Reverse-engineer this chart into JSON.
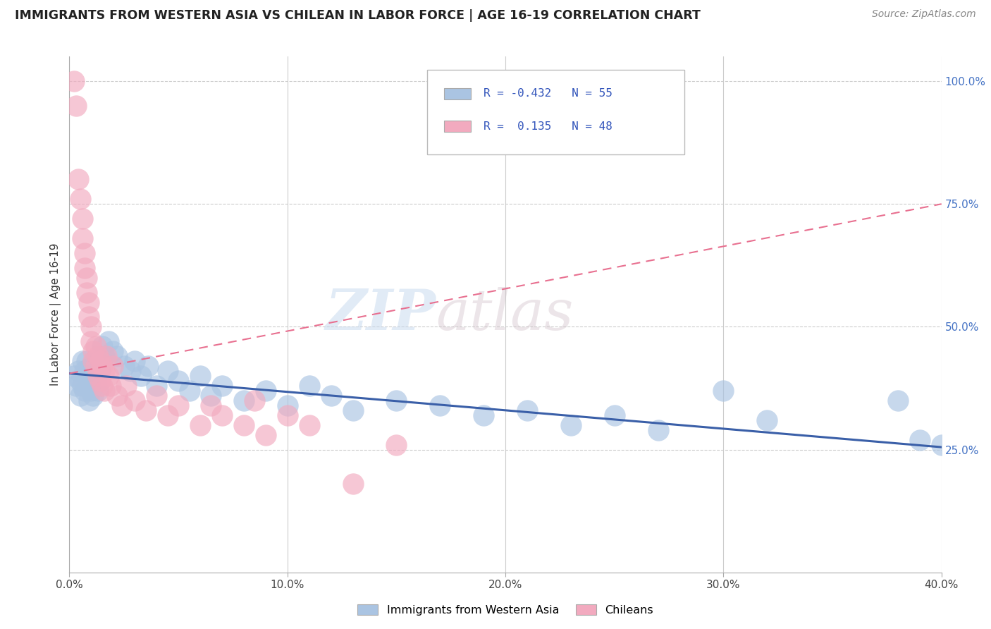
{
  "title": "IMMIGRANTS FROM WESTERN ASIA VS CHILEAN IN LABOR FORCE | AGE 16-19 CORRELATION CHART",
  "source": "Source: ZipAtlas.com",
  "ylabel": "In Labor Force | Age 16-19",
  "xmin": 0.0,
  "xmax": 0.4,
  "ymin": 0.0,
  "ymax": 1.05,
  "x_tick_labels": [
    "0.0%",
    "10.0%",
    "20.0%",
    "30.0%",
    "40.0%"
  ],
  "x_tick_values": [
    0.0,
    0.1,
    0.2,
    0.3,
    0.4
  ],
  "y_tick_labels_right": [
    "100.0%",
    "75.0%",
    "50.0%",
    "25.0%"
  ],
  "y_tick_values_right": [
    1.0,
    0.75,
    0.5,
    0.25
  ],
  "watermark_zip": "ZIP",
  "watermark_atlas": "atlas",
  "legend_blue_label": "Immigrants from Western Asia",
  "legend_pink_label": "Chileans",
  "blue_R": "-0.432",
  "blue_N": "55",
  "pink_R": "0.135",
  "pink_N": "48",
  "blue_color": "#aac4e2",
  "pink_color": "#f2aabf",
  "blue_line_color": "#3a5fa8",
  "pink_line_color": "#e87090",
  "blue_scatter": [
    [
      0.002,
      0.4
    ],
    [
      0.003,
      0.38
    ],
    [
      0.004,
      0.41
    ],
    [
      0.005,
      0.39
    ],
    [
      0.005,
      0.36
    ],
    [
      0.006,
      0.43
    ],
    [
      0.006,
      0.38
    ],
    [
      0.007,
      0.41
    ],
    [
      0.007,
      0.37
    ],
    [
      0.008,
      0.4
    ],
    [
      0.008,
      0.43
    ],
    [
      0.009,
      0.38
    ],
    [
      0.009,
      0.35
    ],
    [
      0.01,
      0.42
    ],
    [
      0.01,
      0.37
    ],
    [
      0.011,
      0.4
    ],
    [
      0.011,
      0.36
    ],
    [
      0.012,
      0.39
    ],
    [
      0.013,
      0.37
    ],
    [
      0.014,
      0.41
    ],
    [
      0.015,
      0.46
    ],
    [
      0.016,
      0.44
    ],
    [
      0.018,
      0.47
    ],
    [
      0.02,
      0.45
    ],
    [
      0.022,
      0.44
    ],
    [
      0.025,
      0.42
    ],
    [
      0.028,
      0.41
    ],
    [
      0.03,
      0.43
    ],
    [
      0.033,
      0.4
    ],
    [
      0.036,
      0.42
    ],
    [
      0.04,
      0.38
    ],
    [
      0.045,
      0.41
    ],
    [
      0.05,
      0.39
    ],
    [
      0.055,
      0.37
    ],
    [
      0.06,
      0.4
    ],
    [
      0.065,
      0.36
    ],
    [
      0.07,
      0.38
    ],
    [
      0.08,
      0.35
    ],
    [
      0.09,
      0.37
    ],
    [
      0.1,
      0.34
    ],
    [
      0.11,
      0.38
    ],
    [
      0.12,
      0.36
    ],
    [
      0.13,
      0.33
    ],
    [
      0.15,
      0.35
    ],
    [
      0.17,
      0.34
    ],
    [
      0.19,
      0.32
    ],
    [
      0.21,
      0.33
    ],
    [
      0.23,
      0.3
    ],
    [
      0.25,
      0.32
    ],
    [
      0.27,
      0.29
    ],
    [
      0.3,
      0.37
    ],
    [
      0.32,
      0.31
    ],
    [
      0.38,
      0.35
    ],
    [
      0.39,
      0.27
    ],
    [
      0.4,
      0.26
    ]
  ],
  "pink_scatter": [
    [
      0.002,
      1.0
    ],
    [
      0.003,
      0.95
    ],
    [
      0.004,
      0.8
    ],
    [
      0.005,
      0.76
    ],
    [
      0.006,
      0.72
    ],
    [
      0.006,
      0.68
    ],
    [
      0.007,
      0.65
    ],
    [
      0.007,
      0.62
    ],
    [
      0.008,
      0.6
    ],
    [
      0.008,
      0.57
    ],
    [
      0.009,
      0.55
    ],
    [
      0.009,
      0.52
    ],
    [
      0.01,
      0.5
    ],
    [
      0.01,
      0.47
    ],
    [
      0.011,
      0.45
    ],
    [
      0.011,
      0.43
    ],
    [
      0.012,
      0.46
    ],
    [
      0.012,
      0.42
    ],
    [
      0.013,
      0.44
    ],
    [
      0.013,
      0.4
    ],
    [
      0.014,
      0.43
    ],
    [
      0.014,
      0.39
    ],
    [
      0.015,
      0.42
    ],
    [
      0.015,
      0.38
    ],
    [
      0.016,
      0.41
    ],
    [
      0.016,
      0.37
    ],
    [
      0.017,
      0.44
    ],
    [
      0.018,
      0.4
    ],
    [
      0.019,
      0.38
    ],
    [
      0.02,
      0.42
    ],
    [
      0.022,
      0.36
    ],
    [
      0.024,
      0.34
    ],
    [
      0.026,
      0.38
    ],
    [
      0.03,
      0.35
    ],
    [
      0.035,
      0.33
    ],
    [
      0.04,
      0.36
    ],
    [
      0.045,
      0.32
    ],
    [
      0.05,
      0.34
    ],
    [
      0.06,
      0.3
    ],
    [
      0.065,
      0.34
    ],
    [
      0.07,
      0.32
    ],
    [
      0.08,
      0.3
    ],
    [
      0.085,
      0.35
    ],
    [
      0.09,
      0.28
    ],
    [
      0.1,
      0.32
    ],
    [
      0.11,
      0.3
    ],
    [
      0.13,
      0.18
    ],
    [
      0.15,
      0.26
    ]
  ],
  "blue_trendline": [
    [
      0.0,
      0.405
    ],
    [
      0.4,
      0.255
    ]
  ],
  "pink_trendline": [
    [
      0.0,
      0.405
    ],
    [
      0.4,
      0.75
    ]
  ],
  "background_color": "#ffffff",
  "grid_color": "#cccccc"
}
